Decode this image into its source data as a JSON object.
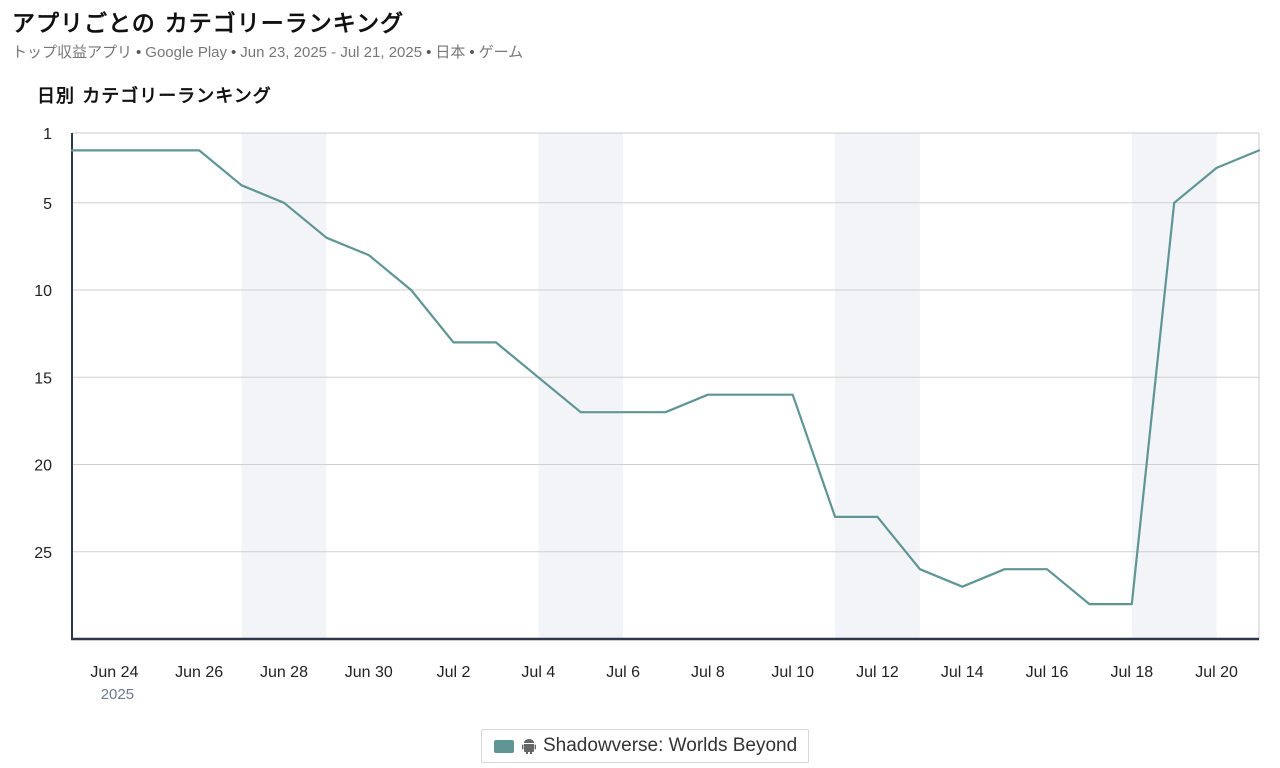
{
  "header": {
    "title": "アプリごとの カテゴリーランキング",
    "subtitle_parts": [
      "トップ収益アプリ",
      "Google Play",
      "Jun 23, 2025 - Jul 21, 2025",
      "日本",
      "ゲーム"
    ],
    "separator": "•"
  },
  "chart_heading": "日別 カテゴリーランキング",
  "chart_data": {
    "type": "line",
    "title": "日別 カテゴリーランキング",
    "x_start": "2025-06-23",
    "x_end": "2025-07-21",
    "x_tick_labels": [
      "Jun 24",
      "Jun 26",
      "Jun 28",
      "Jun 30",
      "Jul 2",
      "Jul 4",
      "Jul 6",
      "Jul 8",
      "Jul 10",
      "Jul 12",
      "Jul 14",
      "Jul 16",
      "Jul 18",
      "Jul 20"
    ],
    "x_tick_dates": [
      "2025-06-24",
      "2025-06-26",
      "2025-06-28",
      "2025-06-30",
      "2025-07-02",
      "2025-07-04",
      "2025-07-06",
      "2025-07-08",
      "2025-07-10",
      "2025-07-12",
      "2025-07-14",
      "2025-07-16",
      "2025-07-18",
      "2025-07-20"
    ],
    "x_year_label": "2025",
    "y_reversed": true,
    "y_ticks": [
      1,
      5,
      10,
      15,
      20,
      25
    ],
    "ylim": [
      1,
      30
    ],
    "grid": true,
    "weekend_bands": [
      [
        "2025-06-27",
        "2025-06-29"
      ],
      [
        "2025-07-04",
        "2025-07-06"
      ],
      [
        "2025-07-11",
        "2025-07-13"
      ],
      [
        "2025-07-18",
        "2025-07-20"
      ]
    ],
    "series": [
      {
        "name": "Shadowverse: Worlds Beyond",
        "platform_icon": "android-icon",
        "color": "#5f9595",
        "points": [
          [
            "2025-06-23",
            2
          ],
          [
            "2025-06-24",
            2
          ],
          [
            "2025-06-25",
            2
          ],
          [
            "2025-06-26",
            2
          ],
          [
            "2025-06-27",
            4
          ],
          [
            "2025-06-28",
            5
          ],
          [
            "2025-06-29",
            7
          ],
          [
            "2025-06-30",
            8
          ],
          [
            "2025-07-01",
            10
          ],
          [
            "2025-07-02",
            13
          ],
          [
            "2025-07-03",
            13
          ],
          [
            "2025-07-04",
            15
          ],
          [
            "2025-07-05",
            17
          ],
          [
            "2025-07-06",
            17
          ],
          [
            "2025-07-07",
            17
          ],
          [
            "2025-07-08",
            16
          ],
          [
            "2025-07-09",
            16
          ],
          [
            "2025-07-10",
            16
          ],
          [
            "2025-07-11",
            23
          ],
          [
            "2025-07-12",
            23
          ],
          [
            "2025-07-13",
            26
          ],
          [
            "2025-07-14",
            27
          ],
          [
            "2025-07-15",
            26
          ],
          [
            "2025-07-16",
            26
          ],
          [
            "2025-07-17",
            28
          ],
          [
            "2025-07-18",
            28
          ],
          [
            "2025-07-19",
            5
          ],
          [
            "2025-07-20",
            3
          ],
          [
            "2025-07-21",
            2
          ]
        ]
      }
    ],
    "legend_position": "bottom-center"
  },
  "colors": {
    "line": "#5f9595",
    "band": "#f2f4f7",
    "grid": "#cfcfcf",
    "axis": "#2d3748"
  }
}
